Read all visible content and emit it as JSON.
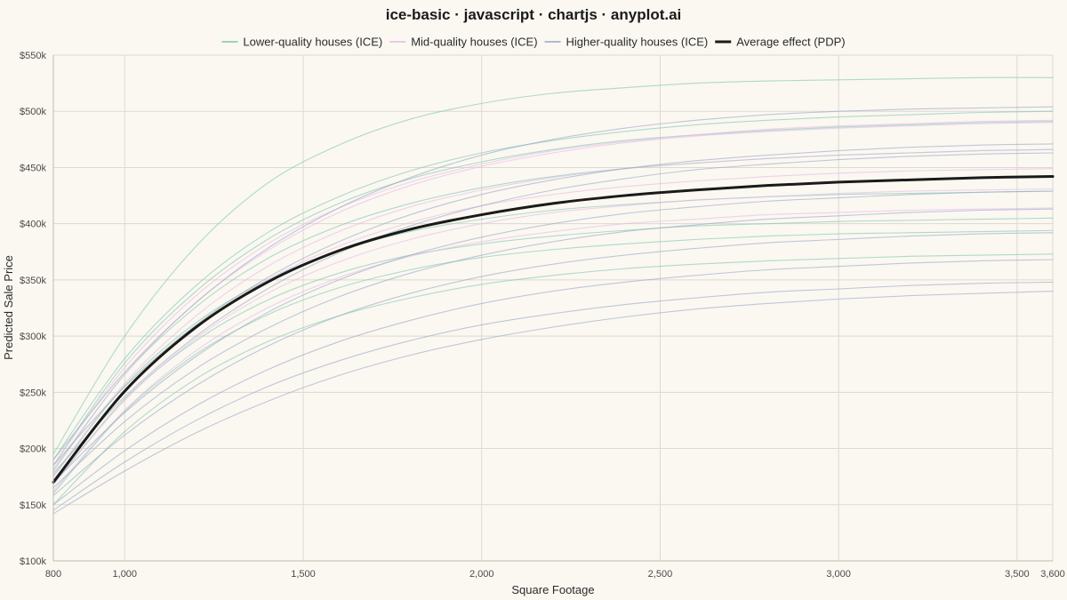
{
  "chart_data": {
    "type": "line",
    "title": "ice-basic · javascript · chartjs · anyplot.ai",
    "xlabel": "Square Footage",
    "ylabel": "Predicted Sale Price",
    "xlim": [
      800,
      3600
    ],
    "ylim": [
      100000,
      550000
    ],
    "x_ticks": [
      800,
      1000,
      1500,
      2000,
      2500,
      3000,
      3500,
      3600
    ],
    "x_tick_labels": [
      "800",
      "1,000",
      "1,500",
      "2,000",
      "2,500",
      "3,000",
      "3,500",
      "3,600"
    ],
    "y_ticks": [
      100000,
      150000,
      200000,
      250000,
      300000,
      350000,
      400000,
      450000,
      500000,
      550000
    ],
    "y_tick_labels": [
      "$100k",
      "$150k",
      "$200k",
      "$250k",
      "$300k",
      "$350k",
      "$400k",
      "$450k",
      "$500k",
      "$550k"
    ],
    "grid": true,
    "legend_position": "top",
    "legend": [
      {
        "label": "Lower-quality houses (ICE)",
        "color": "#7FC4AE"
      },
      {
        "label": "Mid-quality houses (ICE)",
        "color": "#E6B8E8"
      },
      {
        "label": "Higher-quality houses (ICE)",
        "color": "#9AA5C4"
      },
      {
        "label": "Average effect (PDP)",
        "color": "#1A1A1A"
      }
    ],
    "x": [
      800,
      1000,
      1200,
      1400,
      1600,
      1800,
      2000,
      2200,
      2400,
      2600,
      2800,
      3000,
      3200,
      3400,
      3600
    ],
    "series": [
      {
        "name": "Lower-quality houses (ICE)",
        "color": "#7FC4AE",
        "lines": [
          [
            195000,
            300000,
            380000,
            436000,
            470000,
            493000,
            507000,
            516000,
            521000,
            525000,
            527000,
            528000,
            529000,
            530000,
            530000
          ],
          [
            190000,
            280000,
            345000,
            392000,
            424000,
            447000,
            463000,
            474000,
            482000,
            488000,
            492000,
            495000,
            497000,
            499000,
            500000
          ],
          [
            185000,
            276000,
            340000,
            386000,
            418000,
            440000,
            455000,
            466000,
            474000,
            479000,
            483000,
            486000,
            488000,
            490000,
            491000
          ],
          [
            180000,
            266000,
            326000,
            369000,
            398000,
            418000,
            432000,
            442000,
            449000,
            454000,
            458000,
            461000,
            463000,
            465000,
            466000
          ],
          [
            175000,
            256000,
            312000,
            350000,
            376000,
            393000,
            404000,
            412000,
            417000,
            421000,
            424000,
            426000,
            427000,
            428000,
            429000
          ],
          [
            168000,
            244000,
            296000,
            332000,
            356000,
            372000,
            382000,
            389000,
            394000,
            398000,
            400000,
            402000,
            403000,
            404000,
            405000
          ],
          [
            160000,
            233000,
            284000,
            319000,
            343000,
            359000,
            370000,
            377000,
            382000,
            386000,
            389000,
            391000,
            392000,
            393000,
            394000
          ],
          [
            150000,
            215000,
            262000,
            295000,
            318000,
            334000,
            346000,
            354000,
            360000,
            364000,
            367000,
            369000,
            371000,
            372000,
            373000
          ]
        ]
      },
      {
        "name": "Mid-quality houses (ICE)",
        "color": "#E6B8E8",
        "lines": [
          [
            185000,
            272000,
            336000,
            382000,
            414000,
            437000,
            453000,
            465000,
            473000,
            479000,
            484000,
            487000,
            489000,
            491000,
            492000
          ],
          [
            182000,
            266000,
            330000,
            376000,
            410000,
            434000,
            451000,
            463000,
            472000,
            478000,
            482000,
            485000,
            487000,
            489000,
            490000
          ],
          [
            176000,
            258000,
            318000,
            362000,
            393000,
            415000,
            430000,
            441000,
            449000,
            454000,
            458000,
            461000,
            463000,
            465000,
            466000
          ],
          [
            172000,
            250000,
            308000,
            350000,
            380000,
            401000,
            416000,
            426000,
            433000,
            438000,
            442000,
            445000,
            447000,
            448000,
            449000
          ],
          [
            168000,
            243000,
            298000,
            338000,
            366000,
            386000,
            400000,
            410000,
            416000,
            421000,
            424000,
            427000,
            429000,
            430000,
            431000
          ],
          [
            162000,
            234000,
            287000,
            325000,
            352000,
            371000,
            384000,
            393000,
            400000,
            404000,
            408000,
            410000,
            412000,
            413000,
            414000
          ]
        ]
      },
      {
        "name": "Higher-quality houses (ICE)",
        "color": "#9AA5C4",
        "lines": [
          [
            190000,
            268000,
            330000,
            378000,
            414000,
            441000,
            461000,
            475000,
            485000,
            492000,
            497000,
            500000,
            502000,
            503000,
            504000
          ],
          [
            185000,
            255000,
            310000,
            352000,
            384000,
            408000,
            426000,
            439000,
            449000,
            456000,
            461000,
            465000,
            468000,
            470000,
            471000
          ],
          [
            178000,
            246000,
            300000,
            342000,
            374000,
            398000,
            416000,
            430000,
            440000,
            448000,
            453000,
            457000,
            460000,
            462000,
            463000
          ],
          [
            170000,
            232000,
            282000,
            321000,
            350000,
            372000,
            388000,
            400000,
            409000,
            415000,
            420000,
            423000,
            426000,
            428000,
            429000
          ],
          [
            165000,
            224000,
            271000,
            307000,
            335000,
            356000,
            372000,
            384000,
            393000,
            399000,
            404000,
            407000,
            410000,
            412000,
            413000
          ],
          [
            158000,
            212000,
            256000,
            291000,
            318000,
            338000,
            353000,
            364000,
            372000,
            378000,
            383000,
            386000,
            389000,
            391000,
            392000
          ],
          [
            150000,
            198000,
            238000,
            270000,
            295000,
            314000,
            329000,
            340000,
            348000,
            354000,
            359000,
            362000,
            365000,
            367000,
            368000
          ],
          [
            145000,
            188000,
            225000,
            255000,
            278000,
            296000,
            310000,
            320000,
            328000,
            334000,
            339000,
            342000,
            345000,
            347000,
            348000
          ],
          [
            142000,
            180000,
            214000,
            242000,
            265000,
            283000,
            297000,
            308000,
            317000,
            324000,
            329000,
            333000,
            336000,
            338000,
            340000
          ]
        ]
      },
      {
        "name": "Average effect (PDP)",
        "color": "#1A1A1A",
        "lines": [
          [
            170000,
            251000,
            308000,
            348000,
            376000,
            395000,
            408000,
            418000,
            425000,
            430000,
            434000,
            437000,
            439000,
            441000,
            442000
          ]
        ]
      }
    ]
  }
}
